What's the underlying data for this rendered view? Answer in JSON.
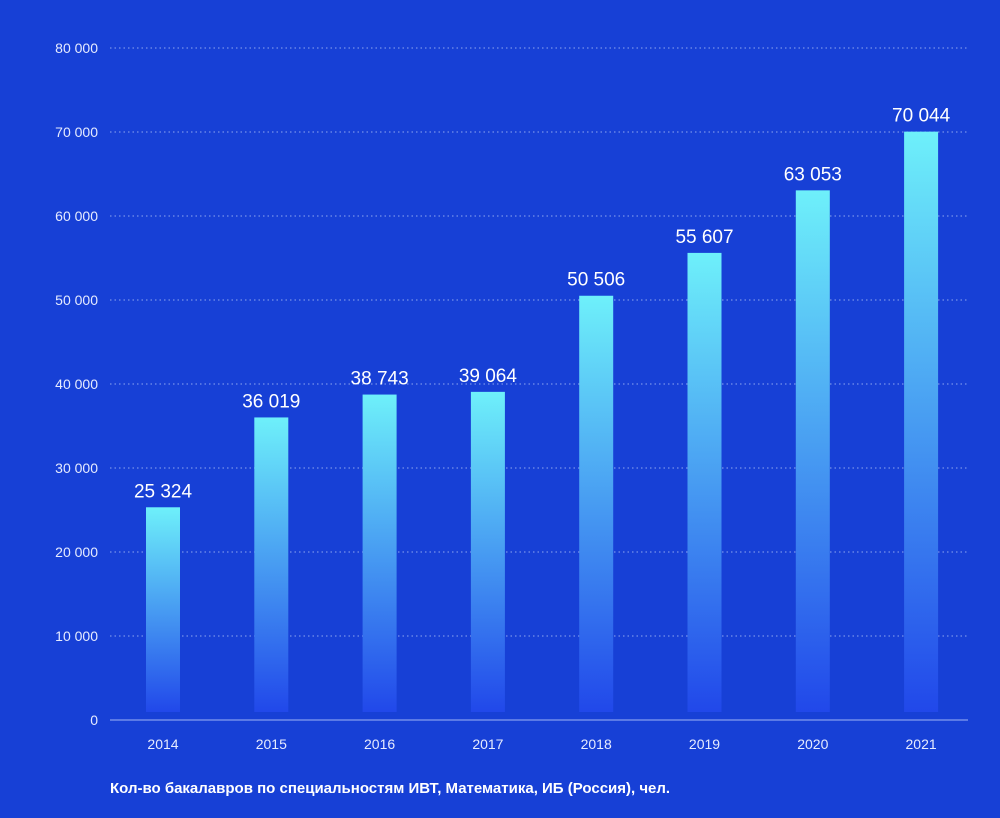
{
  "chart_data": {
    "type": "bar",
    "categories": [
      "2014",
      "2015",
      "2016",
      "2017",
      "2018",
      "2019",
      "2020",
      "2021"
    ],
    "values": [
      25324,
      36019,
      38743,
      39064,
      50506,
      55607,
      63053,
      70044
    ],
    "value_labels": [
      "25 324",
      "36 019",
      "38 743",
      "39 064",
      "50 506",
      "55 607",
      "63 053",
      "70 044"
    ],
    "yticks": [
      0,
      10000,
      20000,
      30000,
      40000,
      50000,
      60000,
      70000,
      80000
    ],
    "ytick_labels": [
      "0",
      "10 000",
      "20 000",
      "30 000",
      "40 000",
      "50 000",
      "60 000",
      "70 000",
      "80 000"
    ],
    "ylim": [
      0,
      80000
    ],
    "grid": true,
    "caption": "Кол-во бакалавров по специальностям ИВТ, Математика, ИБ (Россия), чел.",
    "colors": {
      "background": "#1740d6",
      "bar_top": "#6ef0fa",
      "bar_bottom": "#2148ea",
      "grid": "#8fa6f0",
      "axis": "#9fb3f5"
    }
  }
}
